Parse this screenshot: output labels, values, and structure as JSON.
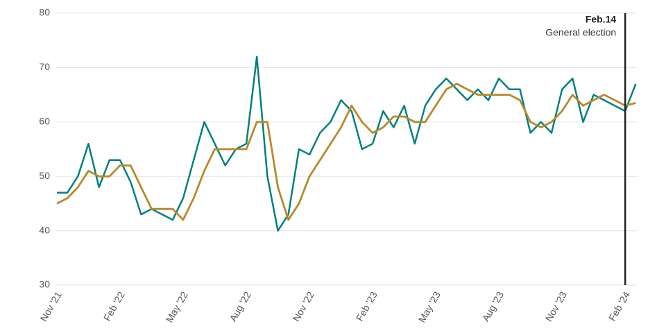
{
  "chart_data": {
    "type": "line",
    "categories": [
      "Nov '21",
      null,
      null,
      null,
      null,
      null,
      "Feb '22",
      null,
      null,
      null,
      null,
      null,
      "May '22",
      null,
      null,
      null,
      null,
      null,
      "Aug '22",
      null,
      null,
      null,
      null,
      null,
      "Nov '22",
      null,
      null,
      null,
      null,
      null,
      "Feb '23",
      null,
      null,
      null,
      null,
      null,
      "May '23",
      null,
      null,
      null,
      null,
      null,
      "Aug '23",
      null,
      null,
      null,
      null,
      null,
      "Nov '23",
      null,
      null,
      null,
      null,
      null,
      "Feb '24",
      null
    ],
    "series": [
      {
        "color": "#00807f",
        "values": [
          47,
          47,
          50,
          56,
          48,
          53,
          53,
          49,
          43,
          44,
          43,
          42,
          46,
          53,
          60,
          56,
          52,
          55,
          56,
          72,
          50,
          40,
          43,
          55,
          54,
          58,
          60,
          64,
          62,
          55,
          56,
          62,
          59,
          63,
          56,
          63,
          66,
          68,
          66,
          64,
          66,
          64,
          68,
          66,
          66,
          58,
          60,
          58,
          66,
          68,
          60,
          65,
          64,
          63,
          62,
          67
        ]
      },
      {
        "color": "#b8892a",
        "values": [
          45,
          46,
          48,
          51,
          50,
          50,
          52,
          52,
          48,
          44,
          44,
          44,
          42,
          46,
          51,
          55,
          55,
          55,
          55,
          60,
          60,
          48,
          42,
          45,
          50,
          53,
          56,
          59,
          63,
          60,
          58,
          59,
          61,
          61,
          60,
          60,
          63,
          66,
          67,
          66,
          65,
          65,
          65,
          65,
          64,
          60,
          59,
          60,
          62,
          65,
          63,
          64,
          65,
          64,
          63,
          63.5
        ]
      }
    ],
    "ylim": [
      30,
      80
    ],
    "yticks": [
      30,
      40,
      50,
      60,
      70,
      80
    ],
    "grid": true,
    "annotation": {
      "at": "Feb '24",
      "label": "Feb.14",
      "text": "General election"
    }
  }
}
